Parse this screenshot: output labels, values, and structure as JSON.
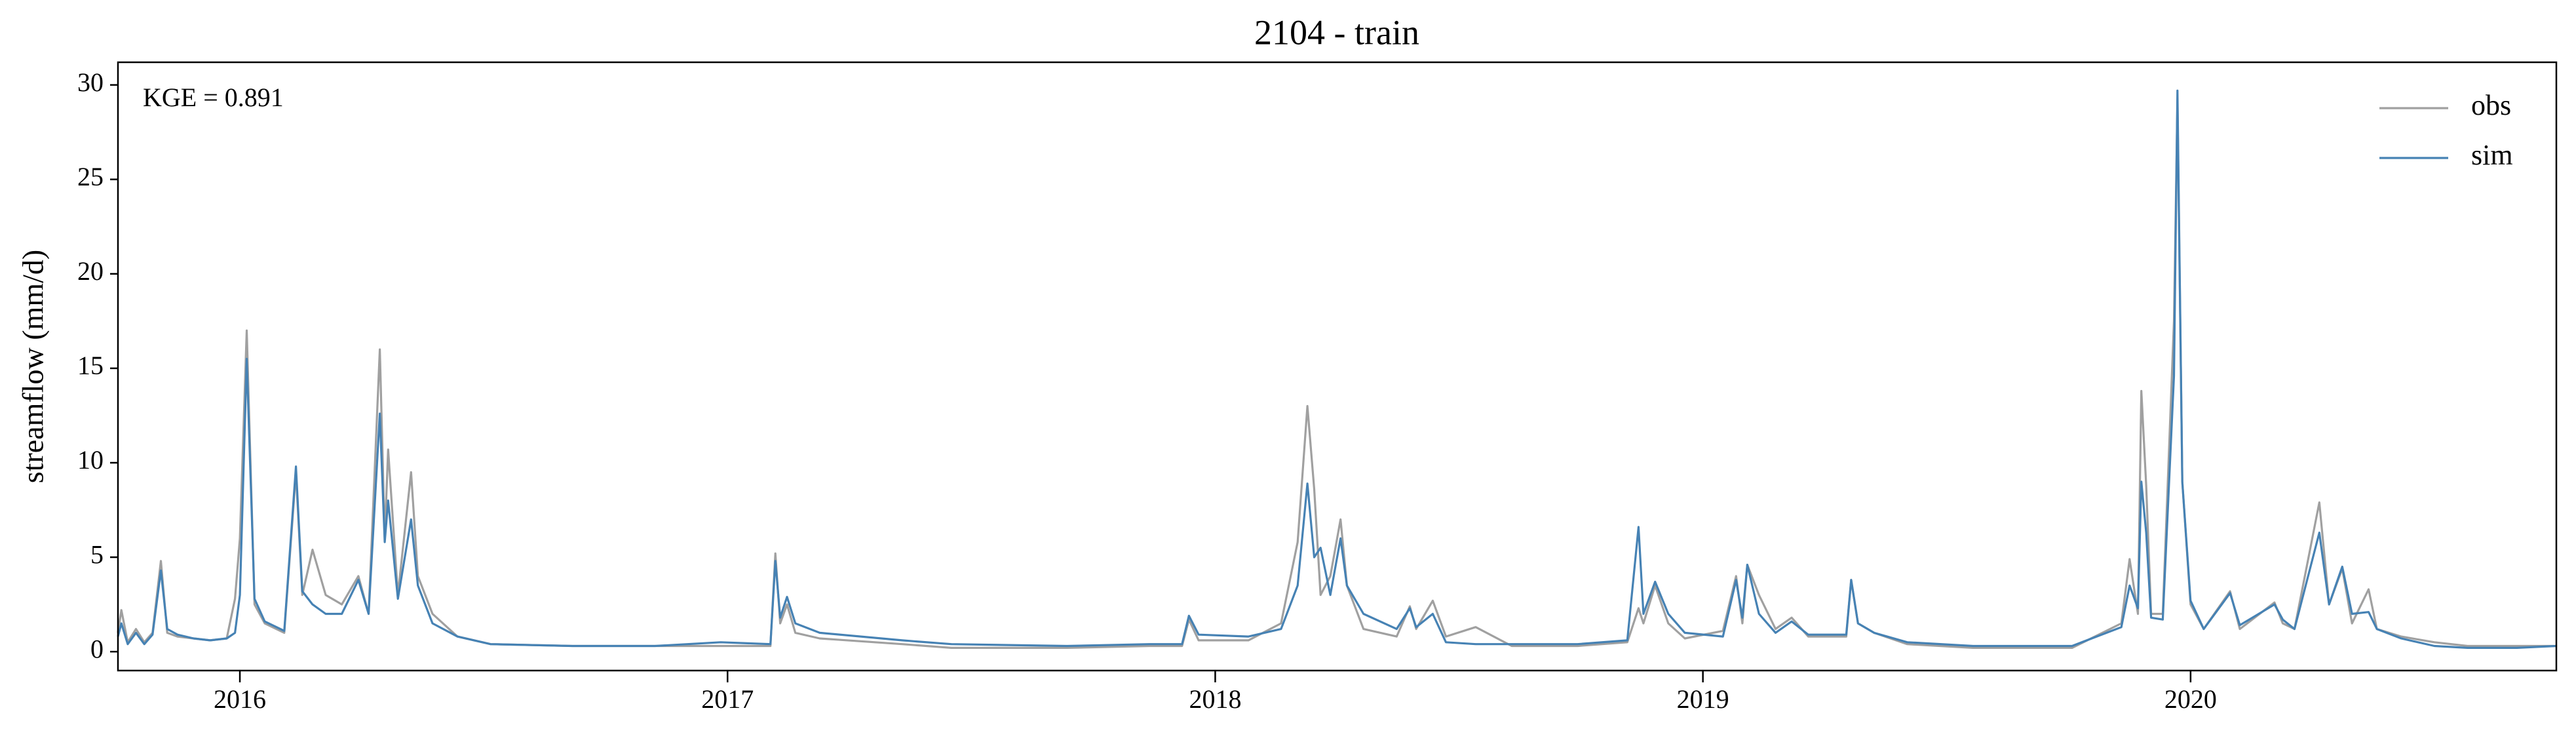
{
  "chart_data": {
    "type": "line",
    "title": "2104 - train",
    "y_label": "streamflow (mm/d)",
    "annotation": "KGE = 0.891",
    "x": [
      2015.75,
      2015.757,
      2015.77,
      2015.787,
      2015.804,
      2015.821,
      2015.838,
      2015.851,
      2015.872,
      2015.905,
      2015.939,
      2015.973,
      2015.99,
      2016.0,
      2016.014,
      2016.03,
      2016.051,
      2016.091,
      2016.115,
      2016.128,
      2016.149,
      2016.176,
      2016.209,
      2016.243,
      2016.264,
      2016.287,
      2016.297,
      2016.304,
      2016.324,
      2016.351,
      2016.365,
      2016.395,
      2016.446,
      2016.514,
      2016.682,
      2016.851,
      2016.986,
      2017.088,
      2017.098,
      2017.108,
      2017.122,
      2017.139,
      2017.189,
      2017.358,
      2017.459,
      2017.696,
      2017.865,
      2017.932,
      2017.946,
      2017.966,
      2018.068,
      2018.135,
      2018.169,
      2018.189,
      2018.203,
      2018.216,
      2018.236,
      2018.257,
      2018.27,
      2018.304,
      2018.372,
      2018.399,
      2018.412,
      2018.446,
      2018.473,
      2018.534,
      2018.608,
      2018.743,
      2018.845,
      2018.868,
      2018.878,
      2018.902,
      2018.929,
      2018.963,
      2019.041,
      2019.068,
      2019.081,
      2019.091,
      2019.115,
      2019.149,
      2019.182,
      2019.216,
      2019.294,
      2019.304,
      2019.318,
      2019.351,
      2019.419,
      2019.554,
      2019.757,
      2019.858,
      2019.875,
      2019.892,
      2019.899,
      2019.909,
      2019.919,
      2019.943,
      2019.966,
      2019.973,
      2019.983,
      2020.0,
      2020.027,
      2020.081,
      2020.101,
      2020.172,
      2020.189,
      2020.213,
      2020.264,
      2020.284,
      2020.311,
      2020.331,
      2020.365,
      2020.382,
      2020.432,
      2020.5,
      2020.568,
      2020.669,
      2020.75
    ],
    "series": [
      {
        "name": "obs",
        "color": "#a0a0a0",
        "values": [
          1.0,
          2.2,
          0.5,
          1.2,
          0.5,
          1.0,
          4.8,
          1.0,
          0.8,
          0.7,
          0.6,
          0.7,
          2.8,
          6.0,
          17.0,
          2.5,
          1.5,
          1.0,
          9.5,
          3.0,
          5.4,
          3.0,
          2.5,
          4.0,
          2.0,
          16.0,
          6.0,
          10.7,
          3.0,
          9.5,
          4.0,
          2.0,
          0.8,
          0.4,
          0.3,
          0.3,
          0.3,
          0.3,
          5.2,
          1.5,
          2.5,
          1.0,
          0.7,
          0.4,
          0.2,
          0.2,
          0.3,
          0.3,
          1.7,
          0.6,
          0.6,
          1.5,
          5.8,
          13.0,
          8.6,
          3.0,
          4.0,
          7.0,
          3.5,
          1.2,
          0.8,
          2.4,
          1.2,
          2.7,
          0.8,
          1.3,
          0.3,
          0.3,
          0.5,
          2.3,
          1.5,
          3.5,
          1.5,
          0.7,
          1.1,
          4.0,
          1.5,
          4.6,
          3.0,
          1.2,
          1.8,
          0.8,
          0.8,
          3.8,
          1.5,
          1.0,
          0.4,
          0.2,
          0.2,
          1.5,
          4.9,
          2.0,
          13.8,
          8.8,
          2.0,
          2.0,
          17.5,
          29.0,
          9.0,
          2.5,
          1.2,
          3.2,
          1.2,
          2.6,
          1.5,
          1.2,
          7.9,
          2.5,
          4.4,
          1.5,
          3.3,
          1.2,
          0.8,
          0.5,
          0.3,
          0.3,
          0.3
        ]
      },
      {
        "name": "sim",
        "color": "#4682b4",
        "values": [
          0.8,
          1.5,
          0.4,
          1.0,
          0.4,
          0.9,
          4.3,
          1.2,
          0.9,
          0.7,
          0.6,
          0.7,
          1.0,
          3.0,
          15.5,
          2.8,
          1.6,
          1.1,
          9.8,
          3.2,
          2.5,
          2.0,
          2.0,
          3.8,
          2.0,
          12.6,
          5.8,
          8.0,
          2.8,
          7.0,
          3.5,
          1.5,
          0.8,
          0.4,
          0.3,
          0.3,
          0.5,
          0.4,
          4.8,
          1.8,
          2.9,
          1.5,
          1.0,
          0.6,
          0.4,
          0.3,
          0.4,
          0.4,
          1.9,
          0.9,
          0.8,
          1.2,
          3.5,
          8.9,
          5.0,
          5.5,
          3.0,
          6.0,
          3.5,
          2.0,
          1.2,
          2.3,
          1.3,
          2.0,
          0.5,
          0.4,
          0.4,
          0.4,
          0.6,
          6.6,
          2.0,
          3.7,
          2.0,
          1.0,
          0.8,
          3.8,
          1.8,
          4.6,
          2.0,
          1.0,
          1.6,
          0.9,
          0.9,
          3.8,
          1.5,
          1.0,
          0.5,
          0.3,
          0.3,
          1.3,
          3.5,
          2.3,
          9.0,
          6.3,
          1.8,
          1.7,
          14.6,
          29.7,
          9.0,
          2.7,
          1.2,
          3.1,
          1.4,
          2.5,
          1.7,
          1.2,
          6.3,
          2.5,
          4.5,
          2.0,
          2.1,
          1.2,
          0.7,
          0.3,
          0.2,
          0.2,
          0.3
        ]
      }
    ],
    "xlim": [
      2015.75,
      2020.75
    ],
    "xticks": [
      2016,
      2017,
      2018,
      2019,
      2020
    ],
    "ylim": [
      -1,
      31.2
    ],
    "yticks": [
      0,
      5,
      10,
      15,
      20,
      25,
      30
    ],
    "grid": false,
    "legend": "upper right"
  }
}
